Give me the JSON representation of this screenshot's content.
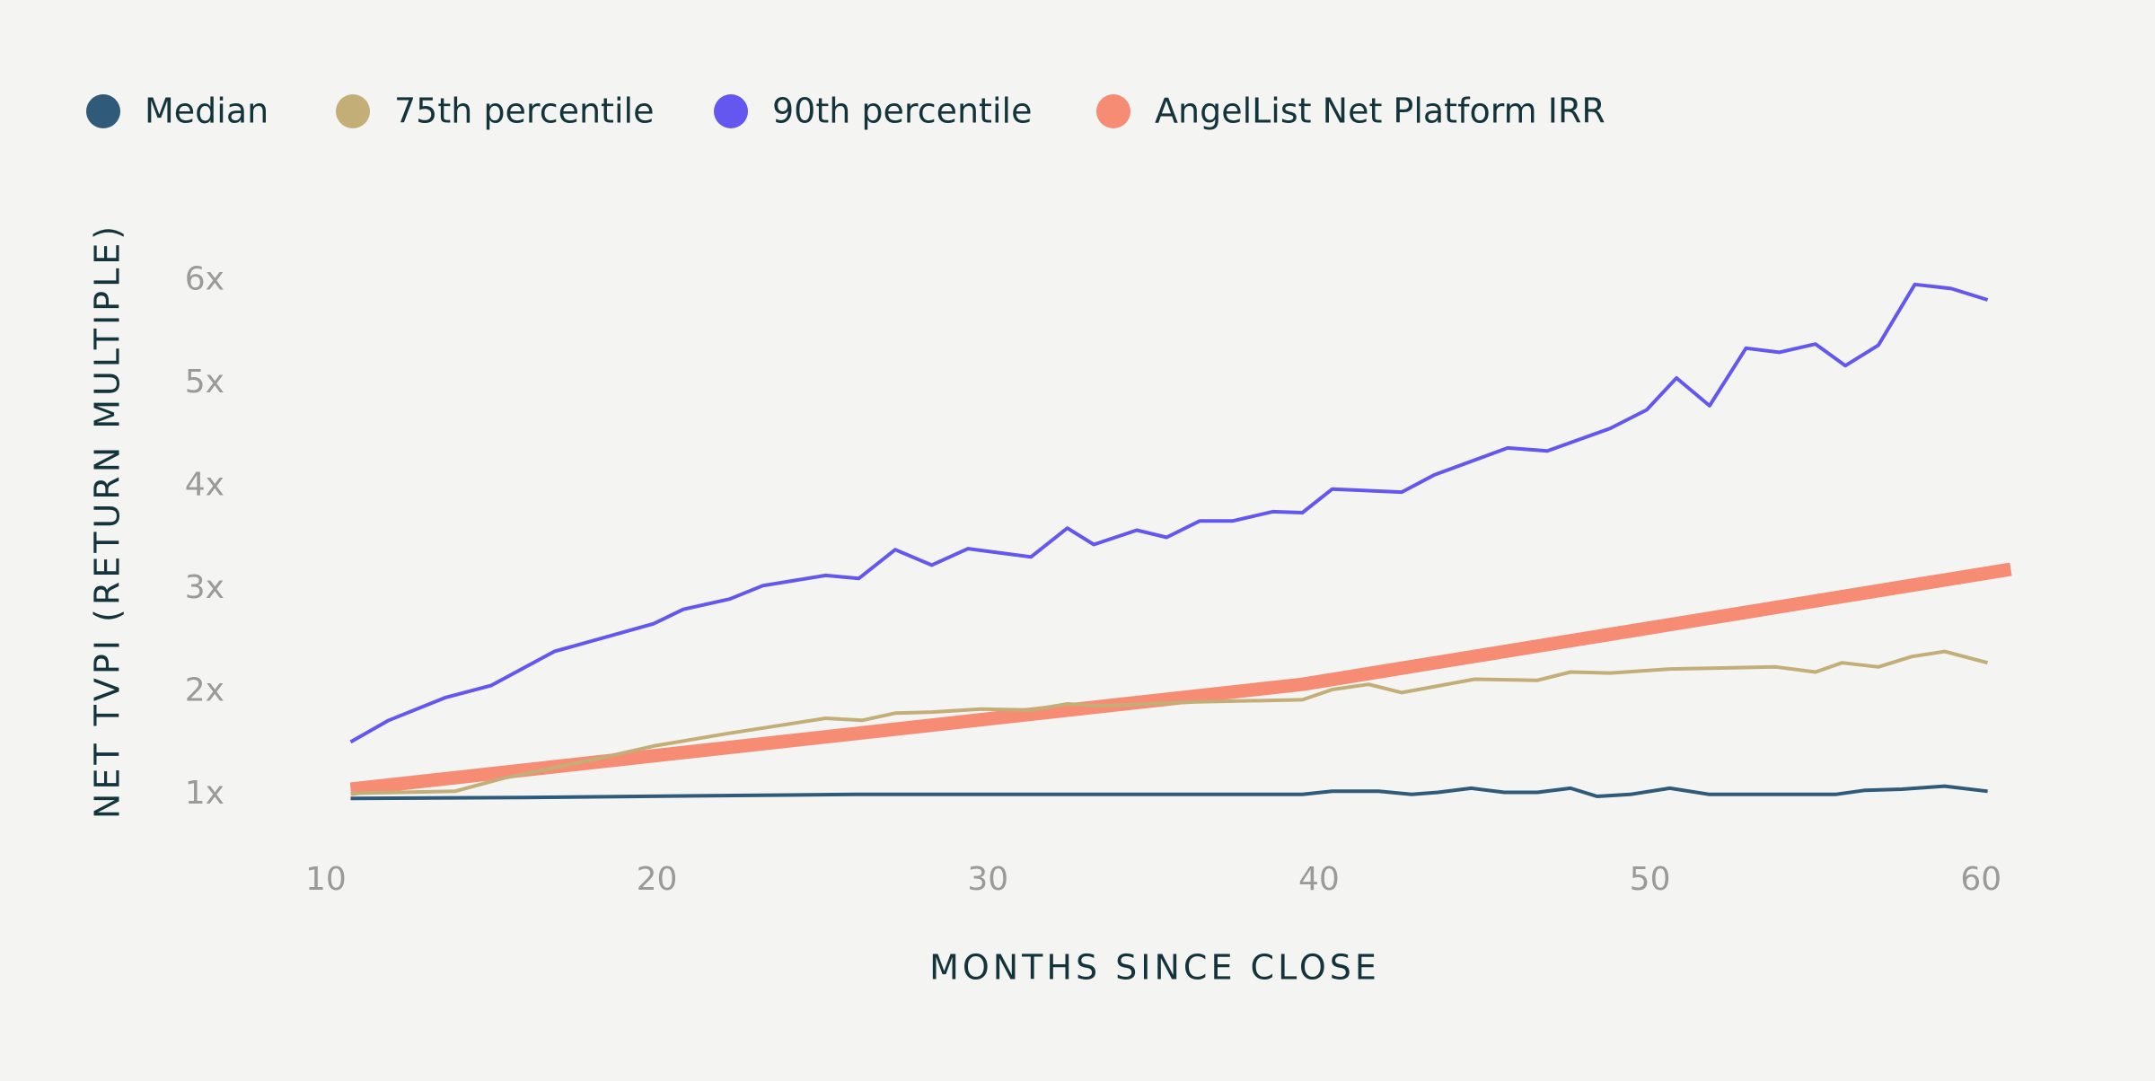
{
  "chart_data": {
    "type": "line",
    "xlabel": "MONTHS SINCE CLOSE",
    "ylabel": "NET TVPI (RETURN MULTIPLE)",
    "xlim": [
      9,
      62
    ],
    "ylim": [
      0.5,
      6.5
    ],
    "xticks": [
      10,
      20,
      30,
      40,
      50,
      60
    ],
    "yticks": [
      {
        "value": 1,
        "label": "1x"
      },
      {
        "value": 2,
        "label": "2x"
      },
      {
        "value": 3,
        "label": "3x"
      },
      {
        "value": 4,
        "label": "4x"
      },
      {
        "value": 5,
        "label": "5x"
      },
      {
        "value": 6,
        "label": "6x"
      }
    ],
    "grid": false,
    "legend": "top-left",
    "series": [
      {
        "name": "Median",
        "color": "#2f5a7a",
        "width": 4,
        "x": [
          10.75,
          16,
          26,
          30,
          35,
          39.5,
          40.4,
          41.8,
          42.8,
          43.6,
          44.6,
          45.6,
          46.6,
          47.6,
          48.4,
          49.4,
          50.6,
          51.8,
          53,
          54.5,
          55.6,
          56.5,
          57.6,
          58.9,
          60.2
        ],
        "values": [
          0.96,
          0.97,
          1.0,
          1.0,
          1.0,
          1.0,
          1.03,
          1.03,
          1.0,
          1.02,
          1.06,
          1.02,
          1.02,
          1.06,
          0.98,
          1.0,
          1.06,
          1.0,
          1.0,
          1.0,
          1.0,
          1.04,
          1.05,
          1.08,
          1.03
        ]
      },
      {
        "name": "75th percentile",
        "color": "#c4ae78",
        "width": 4,
        "x": [
          10.75,
          13.9,
          15.4,
          18.4,
          19.9,
          22.1,
          25.1,
          26.2,
          27.2,
          28.3,
          29.8,
          31.3,
          32.4,
          33.4,
          36.3,
          39.5,
          40.4,
          41.5,
          42.5,
          44.7,
          46.6,
          47.6,
          48.8,
          50.6,
          53.8,
          55.0,
          55.8,
          56.9,
          57.9,
          58.9,
          60.2
        ],
        "values": [
          1.01,
          1.03,
          1.16,
          1.36,
          1.47,
          1.59,
          1.74,
          1.72,
          1.79,
          1.8,
          1.83,
          1.82,
          1.88,
          1.86,
          1.9,
          1.92,
          2.02,
          2.07,
          1.99,
          2.12,
          2.11,
          2.19,
          2.18,
          2.22,
          2.24,
          2.19,
          2.28,
          2.24,
          2.34,
          2.39,
          2.28
        ]
      },
      {
        "name": "90th percentile",
        "color": "#6457f0",
        "width": 4,
        "x": [
          10.75,
          11.9,
          13.6,
          15.0,
          16.9,
          19.9,
          20.8,
          22.2,
          23.2,
          25.1,
          26.1,
          27.2,
          28.3,
          29.4,
          31.3,
          32.4,
          33.2,
          34.5,
          35.4,
          36.4,
          37.4,
          38.6,
          39.5,
          40.4,
          42.5,
          43.5,
          45.7,
          46.9,
          48.8,
          49.9,
          50.8,
          51.8,
          52.9,
          53.9,
          55.0,
          55.9,
          56.9,
          58.0,
          59.1,
          60.2
        ],
        "values": [
          1.51,
          1.72,
          1.94,
          2.06,
          2.39,
          2.66,
          2.8,
          2.9,
          3.03,
          3.13,
          3.1,
          3.38,
          3.23,
          3.39,
          3.31,
          3.59,
          3.43,
          3.57,
          3.5,
          3.66,
          3.66,
          3.75,
          3.74,
          3.97,
          3.94,
          4.11,
          4.37,
          4.34,
          4.56,
          4.74,
          5.05,
          4.78,
          5.34,
          5.3,
          5.38,
          5.17,
          5.37,
          5.96,
          5.92,
          5.81
        ]
      },
      {
        "name": "AngelList Net Platform IRR",
        "color": "#f78c74",
        "width": 15,
        "x": [
          10.75,
          39.5,
          60.9
        ],
        "values": [
          1.05,
          2.07,
          3.19
        ]
      }
    ]
  }
}
